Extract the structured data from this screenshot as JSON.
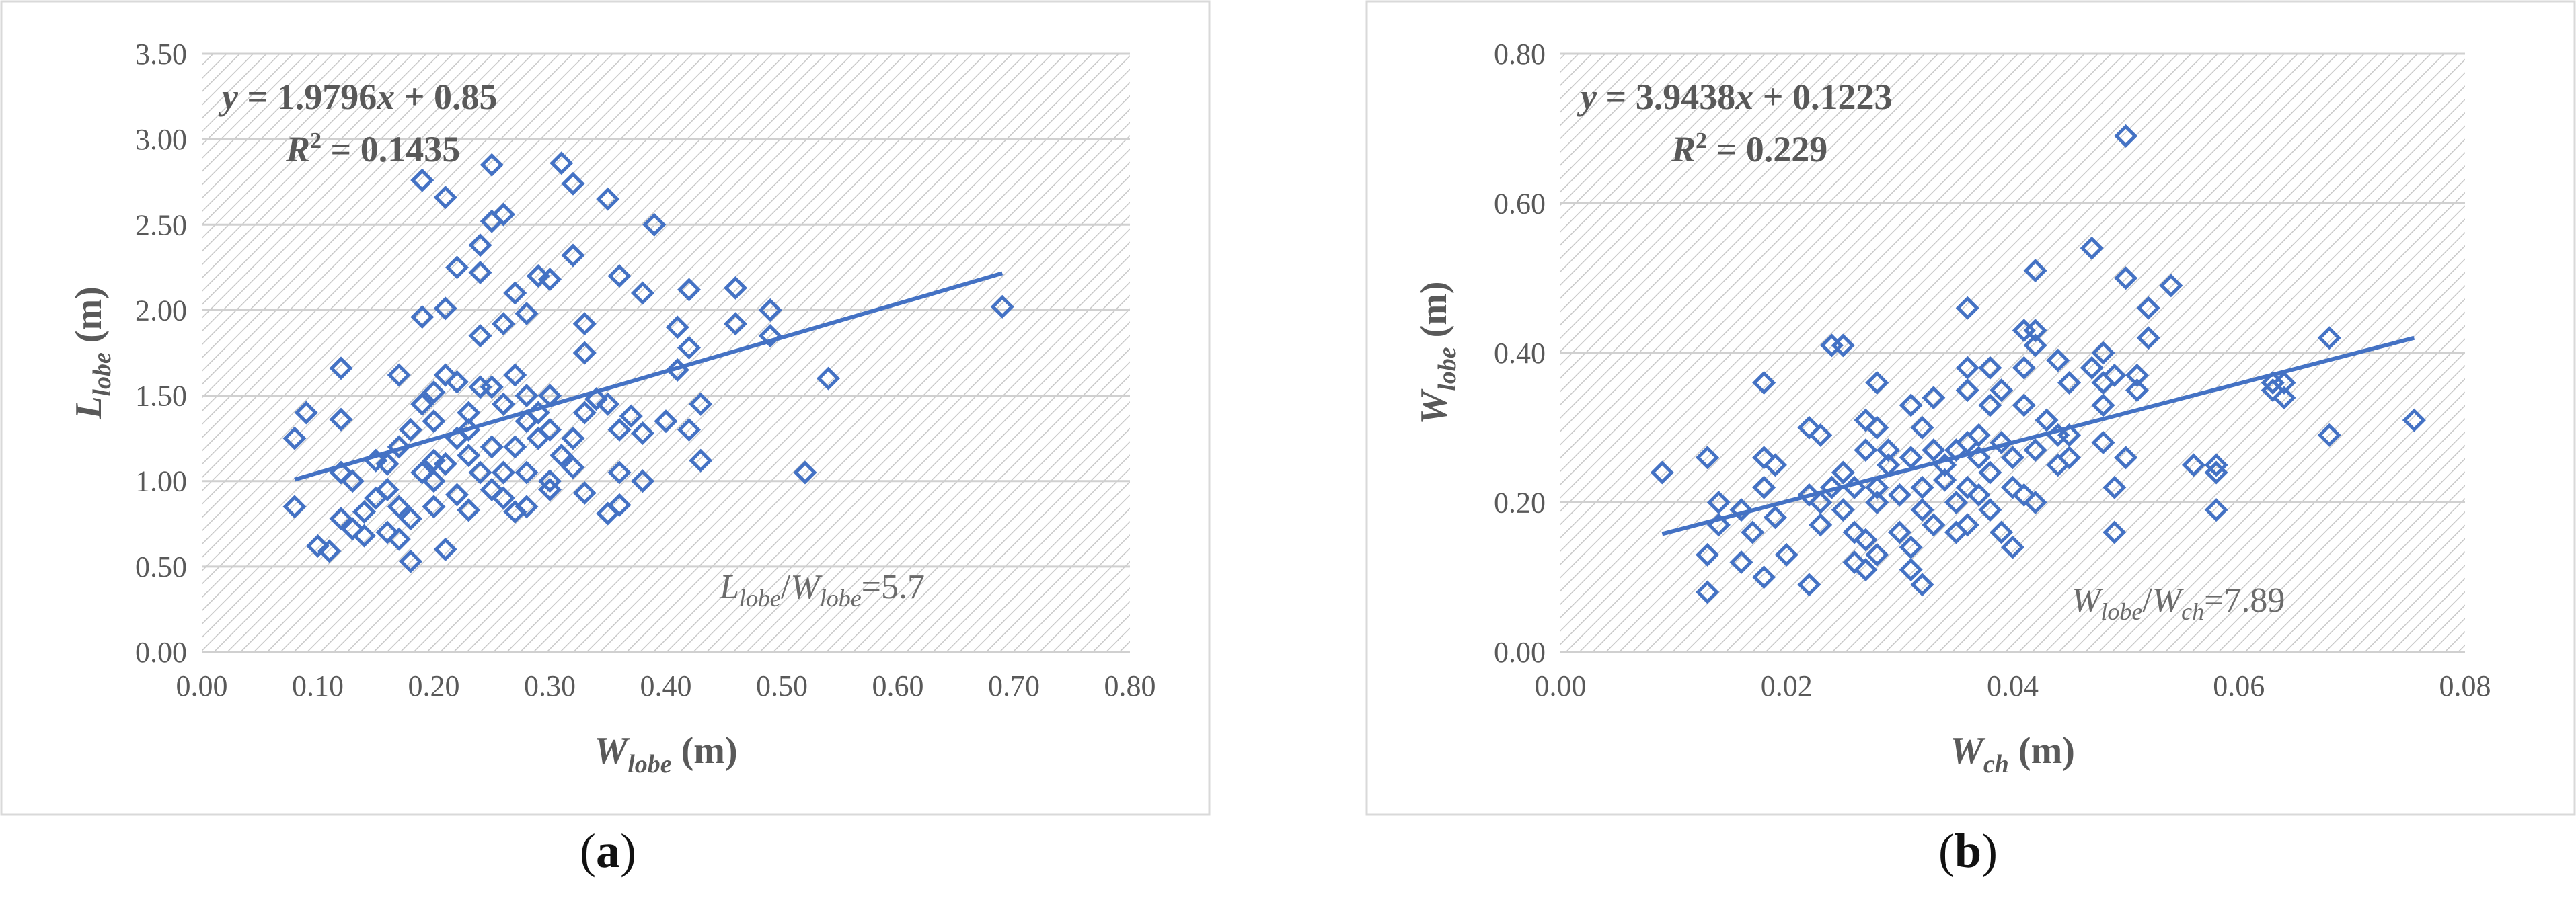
{
  "colors": {
    "marker": "#4472C4",
    "trend": "#4472C4",
    "text": "#595959",
    "grid": "#d0d0d0"
  },
  "panels": [
    {
      "label_open": "(",
      "label_letter": "a",
      "label_close": ")",
      "equation": {
        "y": "y",
        "eq": " = 1.9796",
        "x": "x",
        "rest": " + 0.85"
      },
      "r2": {
        "r": "R",
        "sup": "2",
        "rest": " = 0.1435"
      },
      "ratio": {
        "a": "L",
        "a_sub": "lobe",
        "slash": "/",
        "b": "W",
        "b_sub": "lobe",
        "rest": "=5.7"
      },
      "xlabel": {
        "main": "W",
        "sub": "lobe",
        "unit": " (m)"
      },
      "ylabel": {
        "main": "L",
        "sub": "lobe",
        "unit": " (m)"
      }
    },
    {
      "label_open": "(",
      "label_letter": "b",
      "label_close": ")",
      "equation": {
        "y": "y",
        "eq": " = 3.9438",
        "x": "x",
        "rest": " + 0.1223"
      },
      "r2": {
        "r": "R",
        "sup": "2",
        "rest": " = 0.229"
      },
      "ratio": {
        "a": "W",
        "a_sub": "lobe",
        "slash": "/",
        "b": "W",
        "b_sub": "ch",
        "rest": "=7.89"
      },
      "xlabel": {
        "main": "W",
        "sub": "ch",
        "unit": " (m)"
      },
      "ylabel": {
        "main": "W",
        "sub": "lobe",
        "unit": " (m)"
      }
    }
  ],
  "chart_data": [
    {
      "type": "scatter",
      "grid": true,
      "xlim": [
        0,
        0.8
      ],
      "ylim": [
        0,
        3.5
      ],
      "xticks": [
        "0.00",
        "0.10",
        "0.20",
        "0.30",
        "0.40",
        "0.50",
        "0.60",
        "0.70",
        "0.80"
      ],
      "yticks": [
        "0.00",
        "0.50",
        "1.00",
        "1.50",
        "2.00",
        "2.50",
        "3.00",
        "3.50"
      ],
      "trendline": {
        "slope": 1.9796,
        "intercept": 0.85,
        "x_range": [
          0.08,
          0.69
        ]
      },
      "points": [
        [
          0.08,
          1.25
        ],
        [
          0.08,
          0.85
        ],
        [
          0.09,
          1.4
        ],
        [
          0.1,
          0.62
        ],
        [
          0.11,
          0.59
        ],
        [
          0.12,
          1.66
        ],
        [
          0.12,
          1.36
        ],
        [
          0.12,
          1.05
        ],
        [
          0.12,
          0.78
        ],
        [
          0.13,
          1.0
        ],
        [
          0.13,
          0.72
        ],
        [
          0.14,
          0.82
        ],
        [
          0.14,
          0.68
        ],
        [
          0.15,
          1.12
        ],
        [
          0.15,
          0.9
        ],
        [
          0.16,
          0.7
        ],
        [
          0.16,
          0.95
        ],
        [
          0.16,
          1.1
        ],
        [
          0.17,
          0.66
        ],
        [
          0.17,
          1.2
        ],
        [
          0.17,
          1.62
        ],
        [
          0.17,
          0.85
        ],
        [
          0.18,
          0.78
        ],
        [
          0.18,
          1.3
        ],
        [
          0.18,
          0.53
        ],
        [
          0.19,
          1.05
        ],
        [
          0.19,
          1.45
        ],
        [
          0.19,
          1.96
        ],
        [
          0.19,
          2.76
        ],
        [
          0.2,
          1.12
        ],
        [
          0.2,
          0.85
        ],
        [
          0.2,
          1.35
        ],
        [
          0.2,
          1.52
        ],
        [
          0.2,
          1.0
        ],
        [
          0.21,
          1.1
        ],
        [
          0.21,
          1.62
        ],
        [
          0.21,
          2.01
        ],
        [
          0.21,
          2.66
        ],
        [
          0.21,
          0.6
        ],
        [
          0.22,
          1.25
        ],
        [
          0.22,
          0.92
        ],
        [
          0.22,
          1.58
        ],
        [
          0.22,
          2.25
        ],
        [
          0.23,
          1.4
        ],
        [
          0.23,
          0.83
        ],
        [
          0.23,
          1.15
        ],
        [
          0.23,
          1.3
        ],
        [
          0.24,
          1.55
        ],
        [
          0.24,
          2.22
        ],
        [
          0.24,
          2.38
        ],
        [
          0.24,
          1.85
        ],
        [
          0.24,
          1.05
        ],
        [
          0.25,
          0.95
        ],
        [
          0.25,
          1.2
        ],
        [
          0.25,
          1.55
        ],
        [
          0.25,
          2.85
        ],
        [
          0.25,
          2.52
        ],
        [
          0.26,
          1.45
        ],
        [
          0.26,
          1.92
        ],
        [
          0.26,
          2.56
        ],
        [
          0.26,
          1.05
        ],
        [
          0.26,
          0.9
        ],
        [
          0.27,
          1.2
        ],
        [
          0.27,
          2.1
        ],
        [
          0.27,
          1.62
        ],
        [
          0.27,
          0.82
        ],
        [
          0.28,
          1.35
        ],
        [
          0.28,
          1.5
        ],
        [
          0.28,
          1.05
        ],
        [
          0.28,
          1.98
        ],
        [
          0.28,
          0.85
        ],
        [
          0.29,
          1.25
        ],
        [
          0.29,
          1.4
        ],
        [
          0.29,
          2.2
        ],
        [
          0.3,
          1.0
        ],
        [
          0.3,
          1.3
        ],
        [
          0.3,
          0.95
        ],
        [
          0.3,
          1.5
        ],
        [
          0.3,
          2.18
        ],
        [
          0.31,
          1.15
        ],
        [
          0.31,
          2.86
        ],
        [
          0.32,
          1.25
        ],
        [
          0.32,
          2.74
        ],
        [
          0.32,
          2.32
        ],
        [
          0.32,
          1.08
        ],
        [
          0.33,
          1.75
        ],
        [
          0.33,
          1.92
        ],
        [
          0.33,
          0.93
        ],
        [
          0.33,
          1.4
        ],
        [
          0.34,
          1.48
        ],
        [
          0.35,
          0.81
        ],
        [
          0.35,
          1.45
        ],
        [
          0.35,
          2.65
        ],
        [
          0.36,
          1.3
        ],
        [
          0.36,
          0.86
        ],
        [
          0.36,
          1.05
        ],
        [
          0.36,
          2.2
        ],
        [
          0.37,
          1.38
        ],
        [
          0.38,
          1.28
        ],
        [
          0.38,
          1.0
        ],
        [
          0.38,
          2.1
        ],
        [
          0.39,
          2.5
        ],
        [
          0.4,
          1.35
        ],
        [
          0.41,
          1.65
        ],
        [
          0.41,
          1.9
        ],
        [
          0.42,
          1.3
        ],
        [
          0.42,
          1.78
        ],
        [
          0.42,
          2.12
        ],
        [
          0.43,
          1.45
        ],
        [
          0.43,
          1.12
        ],
        [
          0.46,
          1.92
        ],
        [
          0.46,
          2.13
        ],
        [
          0.49,
          2.0
        ],
        [
          0.49,
          1.85
        ],
        [
          0.52,
          1.05
        ],
        [
          0.54,
          1.6
        ],
        [
          0.69,
          2.02
        ]
      ]
    },
    {
      "type": "scatter",
      "grid": true,
      "xlim": [
        0,
        0.08
      ],
      "ylim": [
        0,
        0.8
      ],
      "xticks": [
        "0.00",
        "0.02",
        "0.04",
        "0.06",
        "0.08"
      ],
      "yticks": [
        "0.00",
        "0.20",
        "0.40",
        "0.60",
        "0.80"
      ],
      "trendline": {
        "slope": 3.9438,
        "intercept": 0.1223,
        "x_range": [
          0.009,
          0.0755
        ]
      },
      "points": [
        [
          0.009,
          0.24
        ],
        [
          0.013,
          0.26
        ],
        [
          0.013,
          0.13
        ],
        [
          0.013,
          0.08
        ],
        [
          0.014,
          0.2
        ],
        [
          0.014,
          0.17
        ],
        [
          0.016,
          0.19
        ],
        [
          0.016,
          0.12
        ],
        [
          0.017,
          0.16
        ],
        [
          0.018,
          0.36
        ],
        [
          0.018,
          0.26
        ],
        [
          0.018,
          0.22
        ],
        [
          0.018,
          0.1
        ],
        [
          0.019,
          0.25
        ],
        [
          0.019,
          0.18
        ],
        [
          0.02,
          0.13
        ],
        [
          0.022,
          0.21
        ],
        [
          0.022,
          0.3
        ],
        [
          0.022,
          0.09
        ],
        [
          0.023,
          0.2
        ],
        [
          0.023,
          0.17
        ],
        [
          0.023,
          0.29
        ],
        [
          0.024,
          0.41
        ],
        [
          0.024,
          0.22
        ],
        [
          0.025,
          0.41
        ],
        [
          0.025,
          0.24
        ],
        [
          0.025,
          0.19
        ],
        [
          0.026,
          0.22
        ],
        [
          0.026,
          0.16
        ],
        [
          0.026,
          0.12
        ],
        [
          0.027,
          0.27
        ],
        [
          0.027,
          0.31
        ],
        [
          0.027,
          0.15
        ],
        [
          0.027,
          0.11
        ],
        [
          0.028,
          0.36
        ],
        [
          0.028,
          0.3
        ],
        [
          0.028,
          0.22
        ],
        [
          0.028,
          0.13
        ],
        [
          0.028,
          0.2
        ],
        [
          0.029,
          0.27
        ],
        [
          0.029,
          0.25
        ],
        [
          0.03,
          0.21
        ],
        [
          0.03,
          0.16
        ],
        [
          0.031,
          0.33
        ],
        [
          0.031,
          0.26
        ],
        [
          0.031,
          0.14
        ],
        [
          0.031,
          0.11
        ],
        [
          0.032,
          0.3
        ],
        [
          0.032,
          0.22
        ],
        [
          0.032,
          0.19
        ],
        [
          0.032,
          0.09
        ],
        [
          0.033,
          0.34
        ],
        [
          0.033,
          0.27
        ],
        [
          0.033,
          0.17
        ],
        [
          0.034,
          0.23
        ],
        [
          0.034,
          0.25
        ],
        [
          0.035,
          0.2
        ],
        [
          0.035,
          0.16
        ],
        [
          0.035,
          0.27
        ],
        [
          0.036,
          0.46
        ],
        [
          0.036,
          0.38
        ],
        [
          0.036,
          0.35
        ],
        [
          0.036,
          0.28
        ],
        [
          0.036,
          0.22
        ],
        [
          0.036,
          0.17
        ],
        [
          0.037,
          0.29
        ],
        [
          0.037,
          0.26
        ],
        [
          0.037,
          0.21
        ],
        [
          0.038,
          0.38
        ],
        [
          0.038,
          0.33
        ],
        [
          0.038,
          0.24
        ],
        [
          0.038,
          0.19
        ],
        [
          0.039,
          0.35
        ],
        [
          0.039,
          0.16
        ],
        [
          0.039,
          0.28
        ],
        [
          0.04,
          0.26
        ],
        [
          0.04,
          0.22
        ],
        [
          0.04,
          0.14
        ],
        [
          0.041,
          0.43
        ],
        [
          0.041,
          0.38
        ],
        [
          0.041,
          0.33
        ],
        [
          0.041,
          0.21
        ],
        [
          0.042,
          0.51
        ],
        [
          0.042,
          0.43
        ],
        [
          0.042,
          0.41
        ],
        [
          0.042,
          0.27
        ],
        [
          0.042,
          0.2
        ],
        [
          0.043,
          0.31
        ],
        [
          0.044,
          0.39
        ],
        [
          0.044,
          0.29
        ],
        [
          0.044,
          0.25
        ],
        [
          0.045,
          0.29
        ],
        [
          0.045,
          0.26
        ],
        [
          0.045,
          0.36
        ],
        [
          0.047,
          0.54
        ],
        [
          0.047,
          0.38
        ],
        [
          0.048,
          0.4
        ],
        [
          0.048,
          0.36
        ],
        [
          0.048,
          0.33
        ],
        [
          0.048,
          0.28
        ],
        [
          0.049,
          0.22
        ],
        [
          0.049,
          0.16
        ],
        [
          0.049,
          0.37
        ],
        [
          0.05,
          0.69
        ],
        [
          0.05,
          0.5
        ],
        [
          0.05,
          0.26
        ],
        [
          0.051,
          0.37
        ],
        [
          0.051,
          0.35
        ],
        [
          0.052,
          0.46
        ],
        [
          0.052,
          0.42
        ],
        [
          0.054,
          0.49
        ],
        [
          0.056,
          0.25
        ],
        [
          0.058,
          0.25
        ],
        [
          0.058,
          0.24
        ],
        [
          0.058,
          0.19
        ],
        [
          0.063,
          0.35
        ],
        [
          0.063,
          0.36
        ],
        [
          0.064,
          0.34
        ],
        [
          0.064,
          0.36
        ],
        [
          0.068,
          0.42
        ],
        [
          0.068,
          0.29
        ],
        [
          0.0755,
          0.31
        ]
      ]
    }
  ]
}
